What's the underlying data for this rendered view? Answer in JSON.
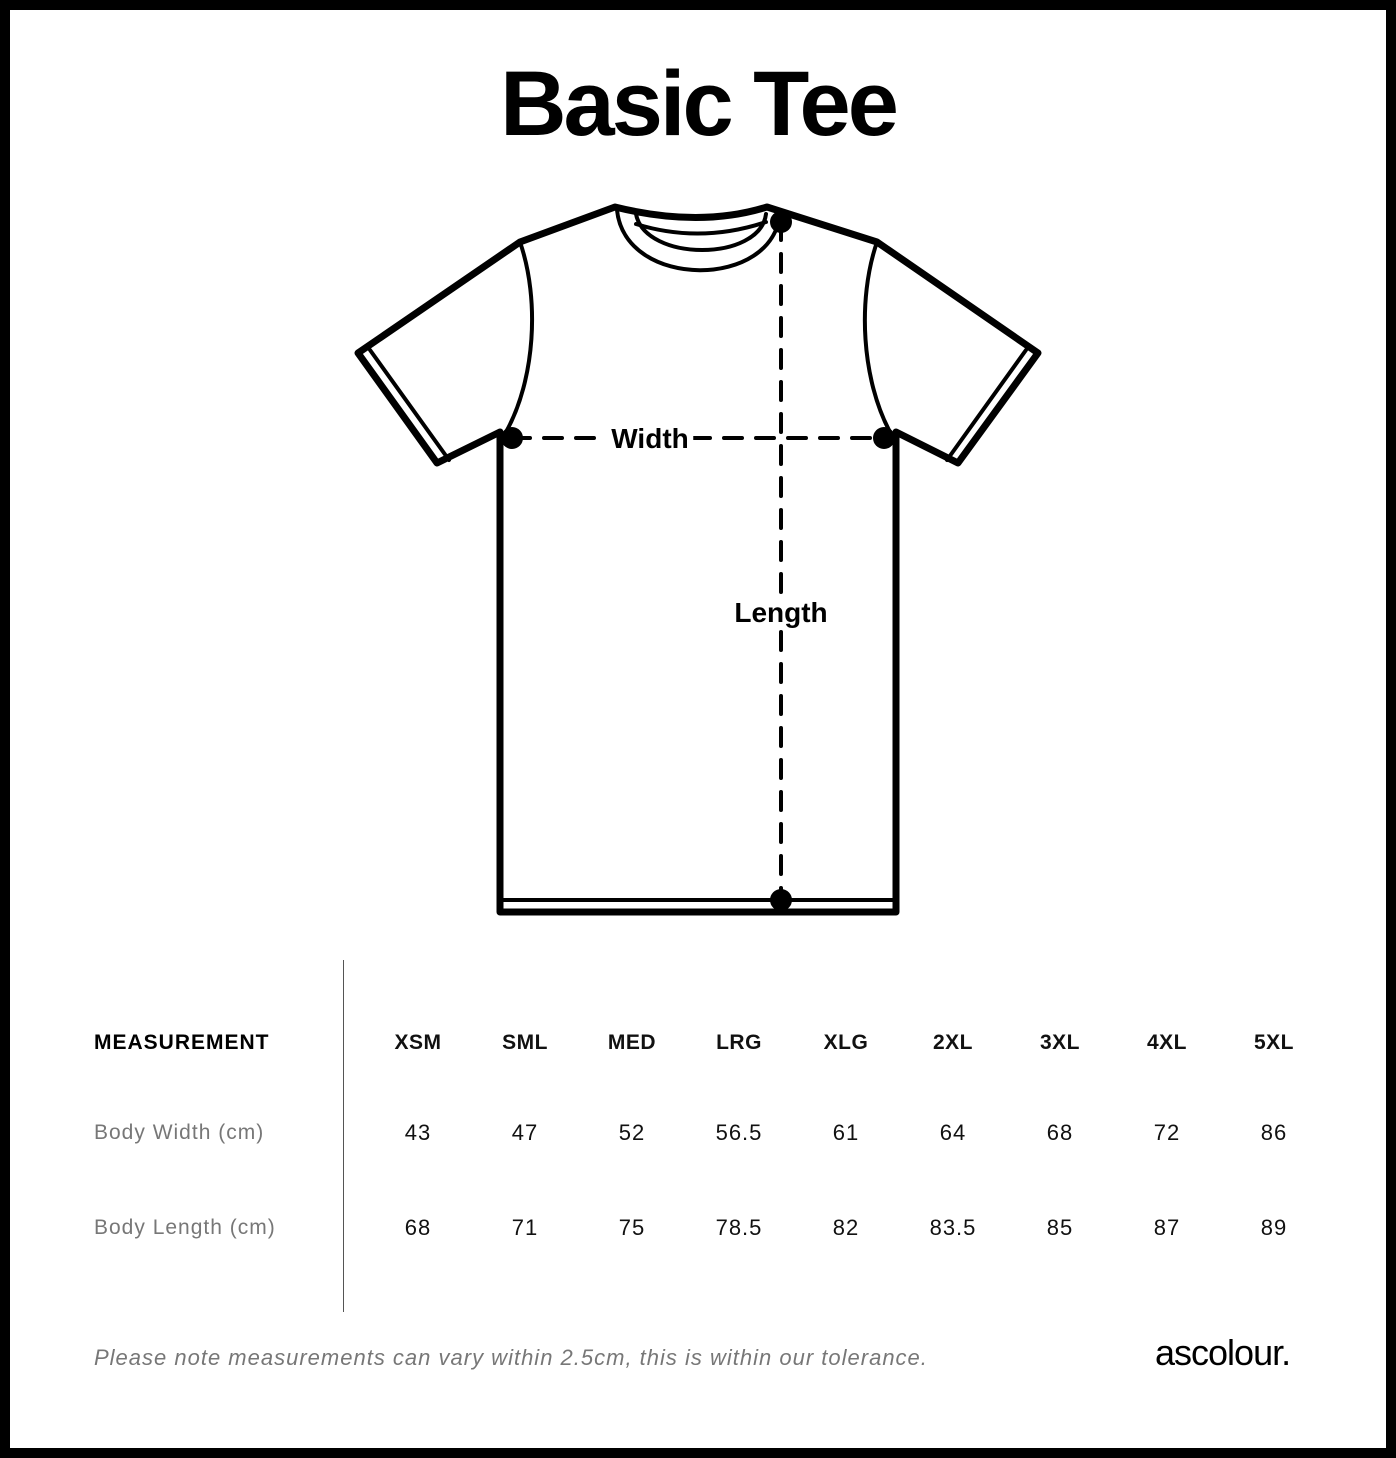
{
  "title": "Basic Tee",
  "diagram": {
    "width_label": "Width",
    "length_label": "Length"
  },
  "table": {
    "header_label": "MEASUREMENT",
    "sizes": [
      "XSM",
      "SML",
      "MED",
      "LRG",
      "XLG",
      "2XL",
      "3XL",
      "4XL",
      "5XL"
    ],
    "rows": [
      {
        "label": "Body Width (cm)",
        "values": [
          "43",
          "47",
          "52",
          "56.5",
          "61",
          "64",
          "68",
          "72",
          "86"
        ]
      },
      {
        "label": "Body Length (cm)",
        "values": [
          "68",
          "71",
          "75",
          "78.5",
          "82",
          "83.5",
          "85",
          "87",
          "89"
        ]
      }
    ]
  },
  "footer": {
    "note": "Please note measurements can vary within 2.5cm, this is within our tolerance.",
    "logo": "ascolour."
  }
}
